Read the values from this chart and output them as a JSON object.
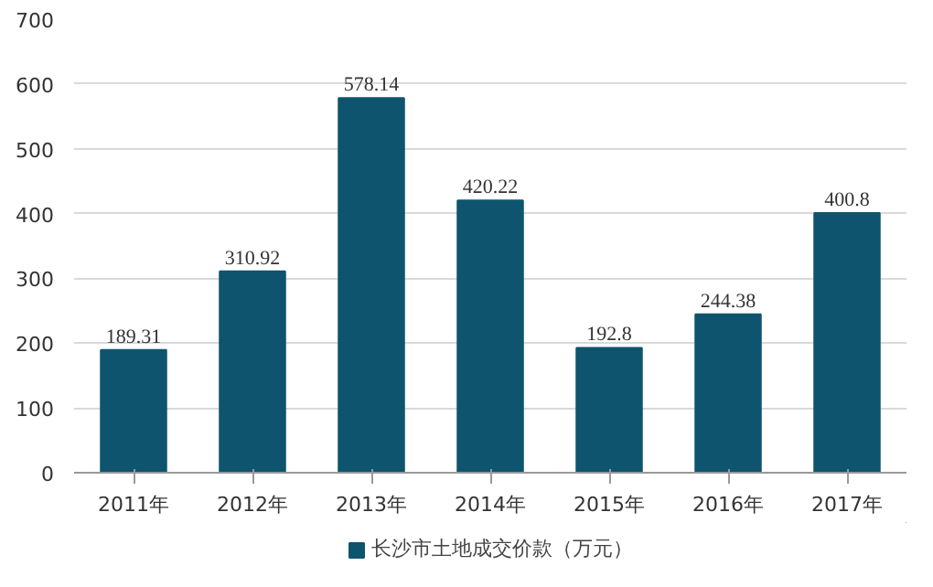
{
  "chart_data": {
    "type": "bar",
    "categories": [
      "2011年",
      "2012年",
      "2013年",
      "2014年",
      "2015年",
      "2016年",
      "2017年"
    ],
    "series": [
      {
        "name": "长沙市土地成交价款（万元）",
        "color": "#0e546e",
        "values": [
          189.31,
          310.92,
          578.14,
          420.22,
          192.8,
          244.38,
          400.8
        ]
      }
    ],
    "ylim": [
      0,
      700
    ],
    "yticks": [
      0,
      100,
      200,
      300,
      400,
      500,
      600,
      700
    ],
    "grid": "y",
    "legend": "bottom",
    "data_labels": true
  }
}
